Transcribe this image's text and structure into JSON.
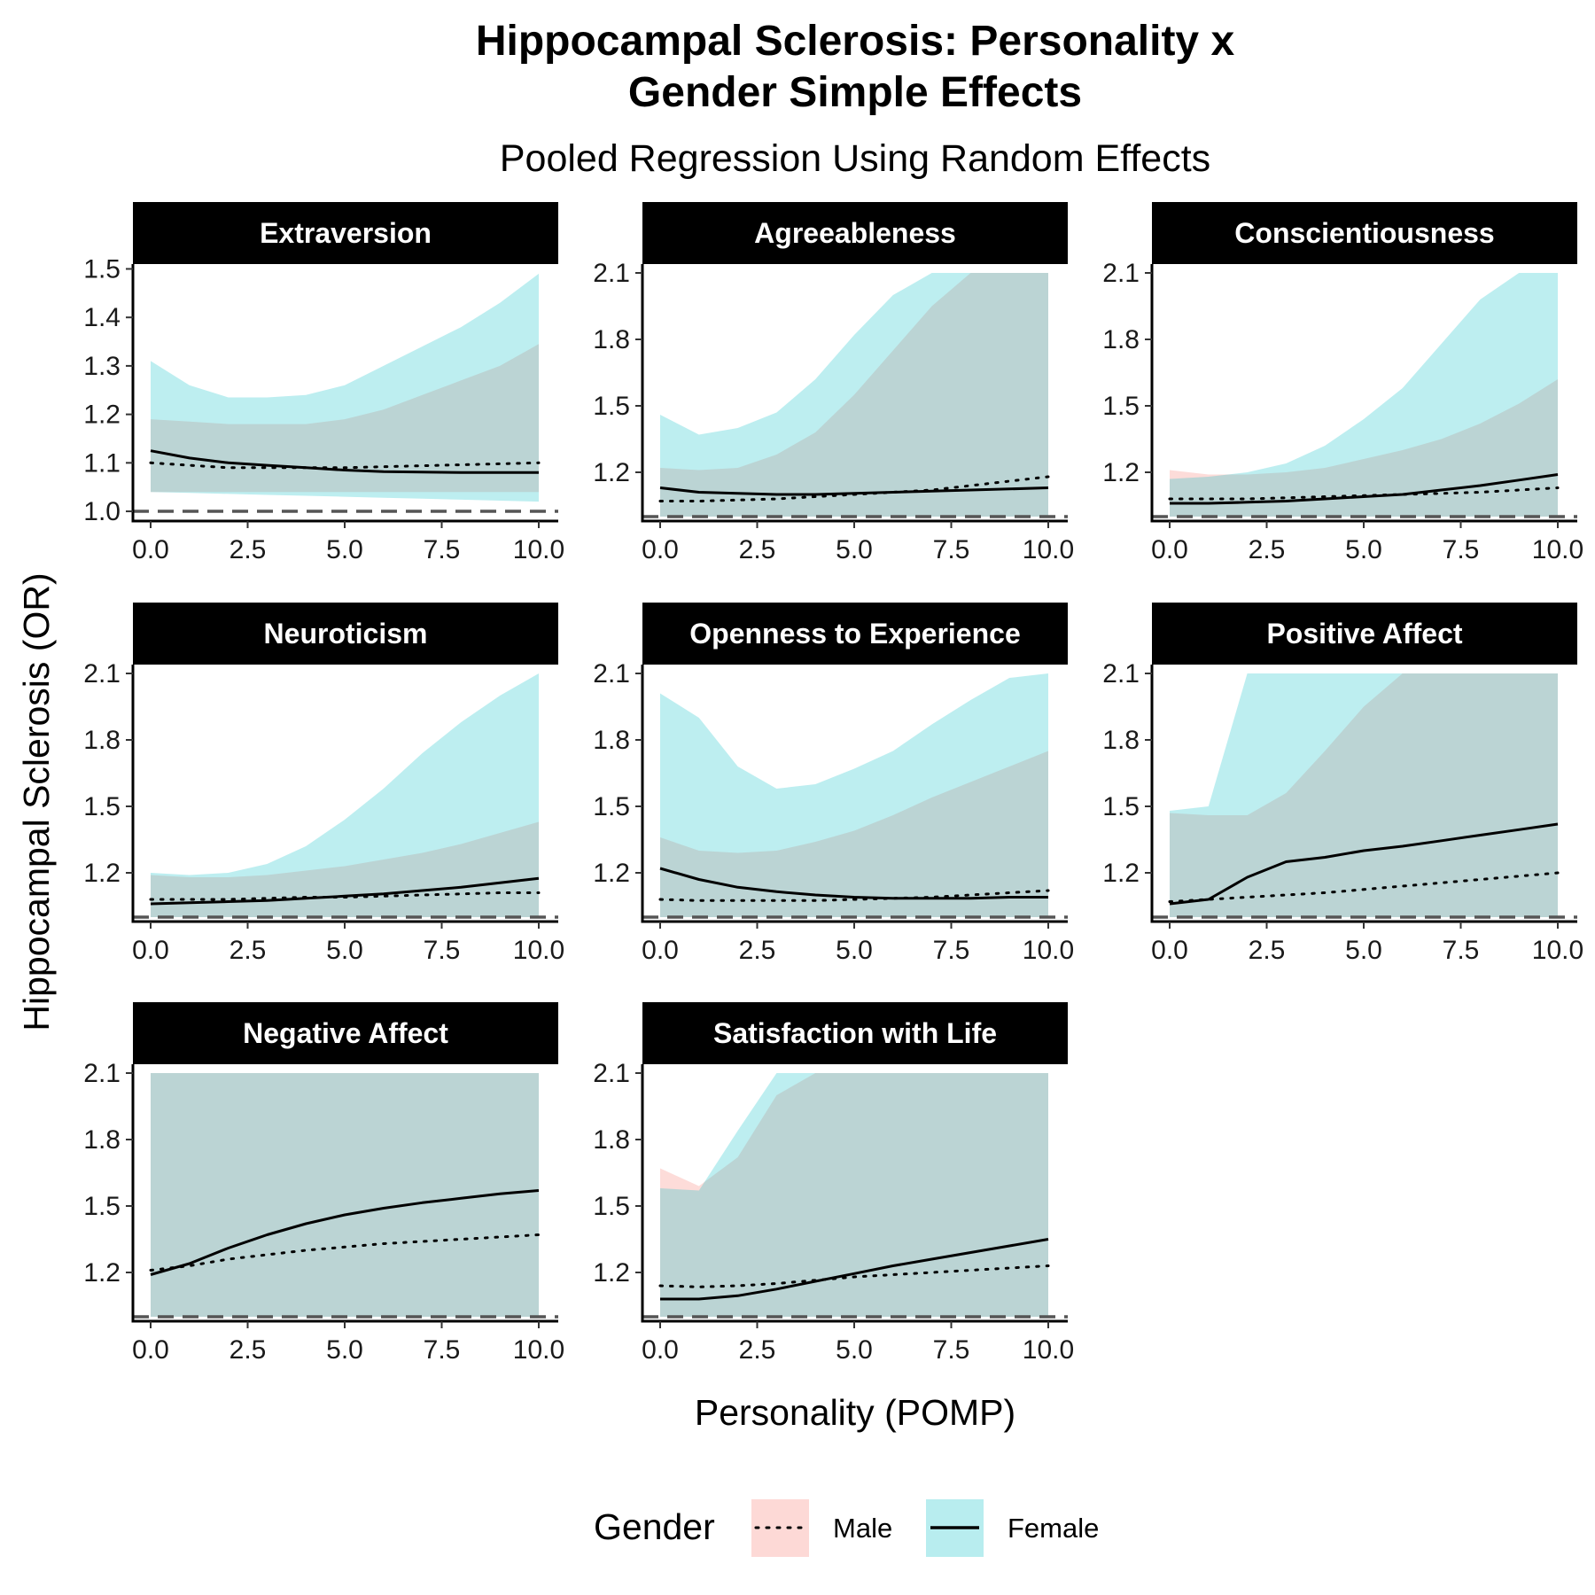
{
  "chart_data": {
    "type": "line",
    "title": "Hippocampal Sclerosis: Personality x Gender Simple Effects",
    "title_lines": [
      "Hippocampal Sclerosis: Personality x",
      "Gender Simple Effects"
    ],
    "subtitle": "Pooled Regression Using Random Effects",
    "xlabel": "Personality (POMP)",
    "ylabel": "Hippocampal Sclerosis (OR)",
    "x_ticks": [
      "0.0",
      "2.5",
      "5.0",
      "7.5",
      "10.0"
    ],
    "xlim": [
      0,
      10
    ],
    "reference_line": 1.0,
    "grid": false,
    "legend": {
      "title": "Gender",
      "position": "bottom",
      "items": [
        {
          "label": "Male",
          "fill": "#F8766D",
          "line": "dotted"
        },
        {
          "label": "Female",
          "fill": "#00BFC4",
          "line": "solid"
        }
      ]
    },
    "colors": {
      "male_ribbon": "#F8766D",
      "female_ribbon": "#00BFC4",
      "strip_bg": "#000000",
      "ref_line": "#555555"
    },
    "panels": [
      {
        "name": "Extraversion",
        "ylim": [
          0.98,
          1.51
        ],
        "y_ticks": [
          "1.0",
          "1.1",
          "1.2",
          "1.3",
          "1.4",
          "1.5"
        ],
        "y_tick_values": [
          1.0,
          1.1,
          1.2,
          1.3,
          1.4,
          1.5
        ],
        "x": [
          0,
          1,
          2,
          3,
          4,
          5,
          6,
          7,
          8,
          9,
          10
        ],
        "male": {
          "estimate": [
            1.1,
            1.095,
            1.09,
            1.09,
            1.09,
            1.09,
            1.092,
            1.094,
            1.096,
            1.098,
            1.1
          ],
          "lower": [
            1.04,
            1.04,
            1.04,
            1.04,
            1.04,
            1.04,
            1.04,
            1.04,
            1.04,
            1.04,
            1.04
          ],
          "upper": [
            1.19,
            1.185,
            1.18,
            1.18,
            1.18,
            1.19,
            1.21,
            1.24,
            1.27,
            1.3,
            1.345
          ]
        },
        "female": {
          "estimate": [
            1.125,
            1.11,
            1.1,
            1.095,
            1.09,
            1.085,
            1.082,
            1.081,
            1.08,
            1.08,
            1.08
          ],
          "lower": [
            1.04,
            1.038,
            1.036,
            1.034,
            1.032,
            1.03,
            1.028,
            1.026,
            1.024,
            1.022,
            1.02
          ],
          "upper": [
            1.31,
            1.26,
            1.235,
            1.235,
            1.24,
            1.26,
            1.3,
            1.34,
            1.38,
            1.43,
            1.49
          ]
        }
      },
      {
        "name": "Agreeableness",
        "ylim": [
          0.98,
          2.14
        ],
        "y_ticks": [
          "1.2",
          "1.5",
          "1.8",
          "2.1"
        ],
        "y_tick_values": [
          1.2,
          1.5,
          1.8,
          2.1
        ],
        "x": [
          0,
          1,
          2,
          3,
          4,
          5,
          6,
          7,
          8,
          9,
          10
        ],
        "male": {
          "estimate": [
            1.07,
            1.07,
            1.075,
            1.08,
            1.09,
            1.1,
            1.11,
            1.12,
            1.14,
            1.16,
            1.18
          ],
          "lower": [
            1.0,
            1.0,
            1.0,
            1.0,
            1.0,
            1.0,
            1.0,
            1.0,
            1.0,
            1.0,
            1.0
          ],
          "upper": [
            1.22,
            1.21,
            1.22,
            1.28,
            1.38,
            1.55,
            1.75,
            1.95,
            2.1,
            2.1,
            2.1
          ]
        },
        "female": {
          "estimate": [
            1.13,
            1.11,
            1.105,
            1.1,
            1.1,
            1.105,
            1.11,
            1.115,
            1.12,
            1.125,
            1.13
          ],
          "lower": [
            1.0,
            1.0,
            1.0,
            1.0,
            1.0,
            1.0,
            1.0,
            1.0,
            1.0,
            1.0,
            1.0
          ],
          "upper": [
            1.46,
            1.37,
            1.4,
            1.47,
            1.62,
            1.82,
            2.0,
            2.1,
            2.1,
            2.1,
            2.1
          ]
        }
      },
      {
        "name": "Conscientiousness",
        "ylim": [
          0.98,
          2.14
        ],
        "y_ticks": [
          "1.2",
          "1.5",
          "1.8",
          "2.1"
        ],
        "y_tick_values": [
          1.2,
          1.5,
          1.8,
          2.1
        ],
        "x": [
          0,
          1,
          2,
          3,
          4,
          5,
          6,
          7,
          8,
          9,
          10
        ],
        "male": {
          "estimate": [
            1.08,
            1.08,
            1.08,
            1.085,
            1.09,
            1.095,
            1.1,
            1.105,
            1.11,
            1.12,
            1.13
          ],
          "lower": [
            1.0,
            1.0,
            1.0,
            1.0,
            1.0,
            1.0,
            1.0,
            1.0,
            1.0,
            1.0,
            1.0
          ],
          "upper": [
            1.21,
            1.19,
            1.19,
            1.2,
            1.22,
            1.26,
            1.3,
            1.35,
            1.42,
            1.51,
            1.62
          ]
        },
        "female": {
          "estimate": [
            1.06,
            1.06,
            1.065,
            1.07,
            1.08,
            1.09,
            1.1,
            1.12,
            1.14,
            1.165,
            1.19
          ],
          "lower": [
            1.0,
            1.0,
            1.0,
            1.0,
            1.0,
            1.0,
            1.0,
            1.0,
            1.0,
            1.0,
            1.0
          ],
          "upper": [
            1.17,
            1.18,
            1.2,
            1.24,
            1.32,
            1.44,
            1.58,
            1.78,
            1.98,
            2.1,
            2.1
          ]
        }
      },
      {
        "name": "Neuroticism",
        "ylim": [
          0.98,
          2.14
        ],
        "y_ticks": [
          "1.2",
          "1.5",
          "1.8",
          "2.1"
        ],
        "y_tick_values": [
          1.2,
          1.5,
          1.8,
          2.1
        ],
        "x": [
          0,
          1,
          2,
          3,
          4,
          5,
          6,
          7,
          8,
          9,
          10
        ],
        "male": {
          "estimate": [
            1.08,
            1.08,
            1.08,
            1.085,
            1.09,
            1.09,
            1.095,
            1.1,
            1.105,
            1.11,
            1.11
          ],
          "lower": [
            1.0,
            1.0,
            1.0,
            1.0,
            1.0,
            1.0,
            1.0,
            1.0,
            1.0,
            1.0,
            1.0
          ],
          "upper": [
            1.19,
            1.18,
            1.18,
            1.19,
            1.21,
            1.23,
            1.26,
            1.29,
            1.33,
            1.38,
            1.43
          ]
        },
        "female": {
          "estimate": [
            1.06,
            1.065,
            1.07,
            1.075,
            1.085,
            1.095,
            1.105,
            1.12,
            1.135,
            1.155,
            1.175
          ],
          "lower": [
            1.0,
            1.0,
            1.0,
            1.0,
            1.0,
            1.0,
            1.0,
            1.0,
            1.0,
            1.0,
            1.0
          ],
          "upper": [
            1.2,
            1.19,
            1.2,
            1.24,
            1.32,
            1.44,
            1.58,
            1.74,
            1.88,
            2.0,
            2.1
          ]
        }
      },
      {
        "name": "Openness to Experience",
        "ylim": [
          0.98,
          2.14
        ],
        "y_ticks": [
          "1.2",
          "1.5",
          "1.8",
          "2.1"
        ],
        "y_tick_values": [
          1.2,
          1.5,
          1.8,
          2.1
        ],
        "x": [
          0,
          1,
          2,
          3,
          4,
          5,
          6,
          7,
          8,
          9,
          10
        ],
        "male": {
          "estimate": [
            1.08,
            1.075,
            1.075,
            1.075,
            1.075,
            1.08,
            1.085,
            1.09,
            1.1,
            1.11,
            1.12
          ],
          "lower": [
            1.0,
            1.0,
            1.0,
            1.0,
            1.0,
            1.0,
            1.0,
            1.0,
            1.0,
            1.0,
            1.0
          ],
          "upper": [
            1.36,
            1.3,
            1.29,
            1.3,
            1.34,
            1.39,
            1.46,
            1.54,
            1.61,
            1.68,
            1.75
          ]
        },
        "female": {
          "estimate": [
            1.22,
            1.17,
            1.135,
            1.115,
            1.1,
            1.09,
            1.085,
            1.085,
            1.085,
            1.09,
            1.09
          ],
          "lower": [
            1.0,
            1.0,
            1.0,
            1.0,
            1.0,
            1.0,
            1.0,
            1.0,
            1.0,
            1.0,
            1.0
          ],
          "upper": [
            2.01,
            1.9,
            1.68,
            1.58,
            1.6,
            1.67,
            1.75,
            1.87,
            1.98,
            2.08,
            2.1
          ]
        }
      },
      {
        "name": "Positive Affect",
        "ylim": [
          0.98,
          2.14
        ],
        "y_ticks": [
          "1.2",
          "1.5",
          "1.8",
          "2.1"
        ],
        "y_tick_values": [
          1.2,
          1.5,
          1.8,
          2.1
        ],
        "x": [
          0,
          1,
          2,
          3,
          4,
          5,
          6,
          7,
          8,
          9,
          10
        ],
        "male": {
          "estimate": [
            1.07,
            1.08,
            1.09,
            1.1,
            1.11,
            1.125,
            1.14,
            1.155,
            1.17,
            1.185,
            1.2
          ],
          "lower": [
            1.0,
            1.0,
            1.0,
            1.0,
            1.0,
            1.0,
            1.0,
            1.0,
            1.0,
            1.0,
            1.0
          ],
          "upper": [
            1.47,
            1.46,
            1.46,
            1.56,
            1.75,
            1.95,
            2.1,
            2.1,
            2.1,
            2.1,
            2.1
          ]
        },
        "female": {
          "estimate": [
            1.06,
            1.08,
            1.18,
            1.25,
            1.27,
            1.3,
            1.32,
            1.345,
            1.37,
            1.395,
            1.42
          ],
          "lower": [
            1.0,
            1.0,
            1.0,
            1.0,
            1.0,
            1.0,
            1.0,
            1.0,
            1.0,
            1.0,
            1.0
          ],
          "upper": [
            1.48,
            1.5,
            2.1,
            2.1,
            2.1,
            2.1,
            2.1,
            2.1,
            2.1,
            2.1,
            2.1
          ]
        }
      },
      {
        "name": "Negative Affect",
        "ylim": [
          0.98,
          2.14
        ],
        "y_ticks": [
          "1.2",
          "1.5",
          "1.8",
          "2.1"
        ],
        "y_tick_values": [
          1.2,
          1.5,
          1.8,
          2.1
        ],
        "x": [
          0,
          1,
          2,
          3,
          4,
          5,
          6,
          7,
          8,
          9,
          10
        ],
        "male": {
          "estimate": [
            1.21,
            1.23,
            1.26,
            1.28,
            1.3,
            1.315,
            1.33,
            1.34,
            1.35,
            1.36,
            1.37
          ],
          "lower": [
            1.0,
            1.0,
            1.0,
            1.0,
            1.0,
            1.0,
            1.0,
            1.0,
            1.0,
            1.0,
            1.0
          ],
          "upper": [
            2.1,
            2.1,
            2.1,
            2.1,
            2.1,
            2.1,
            2.1,
            2.1,
            2.1,
            2.1,
            2.1
          ]
        },
        "female": {
          "estimate": [
            1.19,
            1.24,
            1.31,
            1.37,
            1.42,
            1.46,
            1.49,
            1.515,
            1.535,
            1.555,
            1.57
          ],
          "lower": [
            1.0,
            1.0,
            1.0,
            1.0,
            1.0,
            1.0,
            1.0,
            1.0,
            1.0,
            1.0,
            1.0
          ],
          "upper": [
            2.1,
            2.1,
            2.1,
            2.1,
            2.1,
            2.1,
            2.1,
            2.1,
            2.1,
            2.1,
            2.1
          ]
        }
      },
      {
        "name": "Satisfaction with Life",
        "ylim": [
          0.98,
          2.14
        ],
        "y_ticks": [
          "1.2",
          "1.5",
          "1.8",
          "2.1"
        ],
        "y_tick_values": [
          1.2,
          1.5,
          1.8,
          2.1
        ],
        "x": [
          0,
          1,
          2,
          3,
          4,
          5,
          6,
          7,
          8,
          9,
          10
        ],
        "male": {
          "estimate": [
            1.14,
            1.135,
            1.14,
            1.15,
            1.165,
            1.18,
            1.19,
            1.2,
            1.21,
            1.22,
            1.23
          ],
          "lower": [
            1.0,
            1.0,
            1.0,
            1.0,
            1.0,
            1.0,
            1.0,
            1.0,
            1.0,
            1.0,
            1.0
          ],
          "upper": [
            1.67,
            1.59,
            1.72,
            2.0,
            2.1,
            2.1,
            2.1,
            2.1,
            2.1,
            2.1,
            2.1
          ]
        },
        "female": {
          "estimate": [
            1.08,
            1.08,
            1.095,
            1.125,
            1.16,
            1.195,
            1.23,
            1.26,
            1.29,
            1.32,
            1.35
          ],
          "lower": [
            1.0,
            1.0,
            1.0,
            1.0,
            1.0,
            1.0,
            1.0,
            1.0,
            1.0,
            1.0,
            1.0
          ],
          "upper": [
            1.58,
            1.57,
            1.84,
            2.1,
            2.1,
            2.1,
            2.1,
            2.1,
            2.1,
            2.1,
            2.1
          ]
        }
      }
    ]
  }
}
